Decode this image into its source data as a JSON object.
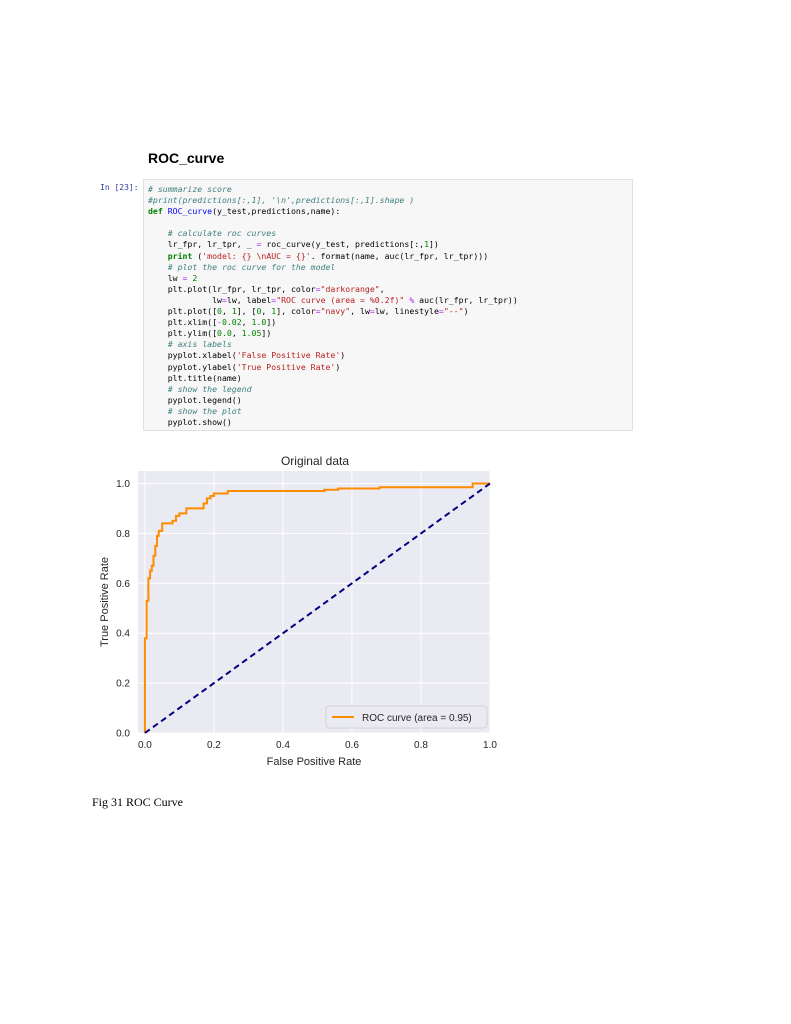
{
  "heading": "ROC_curve",
  "cell": {
    "prompt": "In [23]:",
    "lines": [
      [
        [
          "cm",
          "# summarize score"
        ]
      ],
      [
        [
          "cm",
          "#print(predictions[:,1], '\\n',predictions[:,1].shape )"
        ]
      ],
      [
        [
          "kw",
          "def "
        ],
        [
          "fn",
          "ROC_curve"
        ],
        [
          "t",
          "(y_test,predictions,name):"
        ]
      ],
      [
        [
          "t",
          ""
        ]
      ],
      [
        [
          "t",
          "    "
        ],
        [
          "cm",
          "# calculate roc curves"
        ]
      ],
      [
        [
          "t",
          "    lr_fpr, lr_tpr, _ "
        ],
        [
          "op",
          "="
        ],
        [
          "t",
          " roc_curve(y_test, predictions[:,"
        ],
        [
          "nu",
          "1"
        ],
        [
          "t",
          "])"
        ]
      ],
      [
        [
          "t",
          "    "
        ],
        [
          "kw",
          "print"
        ],
        [
          "t",
          " ("
        ],
        [
          "st",
          "'model: {} \\nAUC = {}'"
        ],
        [
          "t",
          ". format(name, auc(lr_fpr, lr_tpr)))"
        ]
      ],
      [
        [
          "t",
          "    "
        ],
        [
          "cm",
          "# plot the roc curve for the model"
        ]
      ],
      [
        [
          "t",
          "    lw "
        ],
        [
          "op",
          "="
        ],
        [
          "t",
          " "
        ],
        [
          "nu",
          "2"
        ]
      ],
      [
        [
          "t",
          "    plt.plot(lr_fpr, lr_tpr, color"
        ],
        [
          "op",
          "="
        ],
        [
          "st",
          "\"darkorange\""
        ],
        [
          "t",
          ","
        ]
      ],
      [
        [
          "t",
          "             lw"
        ],
        [
          "op",
          "="
        ],
        [
          "t",
          "lw, label"
        ],
        [
          "op",
          "="
        ],
        [
          "st",
          "\"ROC curve (area = %0.2f)\""
        ],
        [
          "t",
          " "
        ],
        [
          "op",
          "%"
        ],
        [
          "t",
          " auc(lr_fpr, lr_tpr))"
        ]
      ],
      [
        [
          "t",
          "    plt.plot(["
        ],
        [
          "nu",
          "0"
        ],
        [
          "t",
          ", "
        ],
        [
          "nu",
          "1"
        ],
        [
          "t",
          "], ["
        ],
        [
          "nu",
          "0"
        ],
        [
          "t",
          ", "
        ],
        [
          "nu",
          "1"
        ],
        [
          "t",
          "], color"
        ],
        [
          "op",
          "="
        ],
        [
          "st",
          "\"navy\""
        ],
        [
          "t",
          ", lw"
        ],
        [
          "op",
          "="
        ],
        [
          "t",
          "lw, linestyle"
        ],
        [
          "op",
          "="
        ],
        [
          "st",
          "\"--\""
        ],
        [
          "t",
          ")"
        ]
      ],
      [
        [
          "t",
          "    plt.xlim(["
        ],
        [
          "op",
          "-"
        ],
        [
          "nu",
          "0.02"
        ],
        [
          "t",
          ", "
        ],
        [
          "nu",
          "1.0"
        ],
        [
          "t",
          "])"
        ]
      ],
      [
        [
          "t",
          "    plt.ylim(["
        ],
        [
          "nu",
          "0.0"
        ],
        [
          "t",
          ", "
        ],
        [
          "nu",
          "1.05"
        ],
        [
          "t",
          "])"
        ]
      ],
      [
        [
          "t",
          "    "
        ],
        [
          "cm",
          "# axis labels"
        ]
      ],
      [
        [
          "t",
          "    pyplot.xlabel("
        ],
        [
          "st",
          "'False Positive Rate'"
        ],
        [
          "t",
          ")"
        ]
      ],
      [
        [
          "t",
          "    pyplot.ylabel("
        ],
        [
          "st",
          "'True Positive Rate'"
        ],
        [
          "t",
          ")"
        ]
      ],
      [
        [
          "t",
          "    plt.title(name)"
        ]
      ],
      [
        [
          "t",
          "    "
        ],
        [
          "cm",
          "# show the legend"
        ]
      ],
      [
        [
          "t",
          "    pyplot.legend()"
        ]
      ],
      [
        [
          "t",
          "    "
        ],
        [
          "cm",
          "# show the plot"
        ]
      ],
      [
        [
          "t",
          "    pyplot.show()"
        ]
      ]
    ]
  },
  "chart_data": {
    "type": "line",
    "title": "Original data",
    "xlabel": "False Positive Rate",
    "ylabel": "True Positive Rate",
    "xlim": [
      -0.02,
      1.0
    ],
    "ylim": [
      0.0,
      1.05
    ],
    "xticks": [
      "0.0",
      "0.2",
      "0.4",
      "0.6",
      "0.8",
      "1.0"
    ],
    "yticks": [
      "0.0",
      "0.2",
      "0.4",
      "0.6",
      "0.8",
      "1.0"
    ],
    "grid": true,
    "legend_position": "lower right",
    "series": [
      {
        "name": "ROC curve (area = 0.95)",
        "color": "#ff8c00",
        "style": "solid",
        "x": [
          0.0,
          0.0,
          0.005,
          0.005,
          0.01,
          0.01,
          0.015,
          0.015,
          0.02,
          0.02,
          0.025,
          0.025,
          0.03,
          0.03,
          0.035,
          0.035,
          0.04,
          0.04,
          0.05,
          0.05,
          0.08,
          0.08,
          0.09,
          0.09,
          0.1,
          0.1,
          0.12,
          0.12,
          0.17,
          0.17,
          0.18,
          0.18,
          0.19,
          0.19,
          0.2,
          0.2,
          0.24,
          0.24,
          0.52,
          0.52,
          0.56,
          0.56,
          0.68,
          0.68,
          0.95,
          0.95,
          1.0
        ],
        "y": [
          0.0,
          0.38,
          0.38,
          0.53,
          0.53,
          0.62,
          0.62,
          0.65,
          0.65,
          0.67,
          0.67,
          0.71,
          0.71,
          0.75,
          0.75,
          0.79,
          0.79,
          0.81,
          0.81,
          0.84,
          0.84,
          0.85,
          0.85,
          0.87,
          0.87,
          0.88,
          0.88,
          0.9,
          0.9,
          0.92,
          0.92,
          0.94,
          0.94,
          0.95,
          0.95,
          0.96,
          0.96,
          0.97,
          0.97,
          0.975,
          0.975,
          0.98,
          0.98,
          0.985,
          0.985,
          1.0,
          1.0
        ]
      },
      {
        "name": "",
        "color": "#000080",
        "style": "dashed",
        "x": [
          0.0,
          1.0
        ],
        "y": [
          0.0,
          1.0
        ]
      }
    ]
  },
  "caption": "Fig 31 ROC Curve"
}
